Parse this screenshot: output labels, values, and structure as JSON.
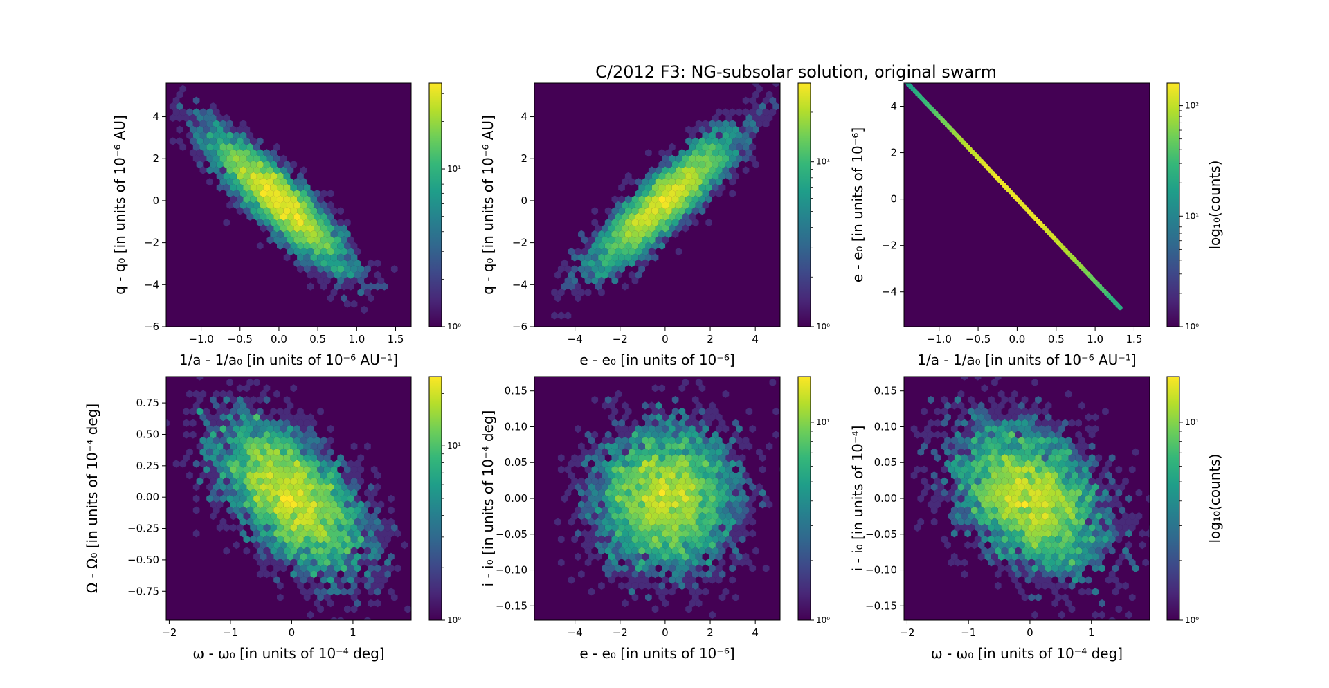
{
  "figure": {
    "title": "C/2012 F3: NG-subsolar solution, original swarm"
  },
  "colormap": {
    "name": "viridis",
    "stops": [
      "#440154",
      "#482878",
      "#3e4989",
      "#31688e",
      "#26828e",
      "#1f9e89",
      "#35b779",
      "#6ece58",
      "#b5de2b",
      "#fde725"
    ]
  },
  "chart_data": [
    {
      "type": "heatmap",
      "subtype": "hexbin",
      "xlabel": "1/a - 1/a₀ [in units of 10⁻⁶ AU⁻¹]",
      "ylabel": "q - q₀ [in units of 10⁻⁶ AU]",
      "xlim": [
        -1.45,
        1.7
      ],
      "ylim": [
        -6.0,
        5.6
      ],
      "xticks": [
        -1.0,
        -0.5,
        0.0,
        0.5,
        1.0,
        1.5
      ],
      "xtick_labels": [
        "−1.0",
        "−0.5",
        "0.0",
        "0.5",
        "1.0",
        "1.5"
      ],
      "yticks": [
        -6,
        -4,
        -2,
        0,
        2,
        4
      ],
      "ytick_labels": [
        "−6",
        "−4",
        "−2",
        "0",
        "2",
        "4"
      ],
      "distribution": {
        "mean": [
          0.0,
          0.0
        ],
        "std": [
          0.42,
          1.55
        ],
        "corr": -0.88
      },
      "colorbar": {
        "scale": "log",
        "range": [
          1,
          35
        ],
        "ticks": [
          1,
          10
        ],
        "tick_labels": [
          "10⁰",
          "10¹"
        ],
        "label": ""
      }
    },
    {
      "type": "heatmap",
      "subtype": "hexbin",
      "xlabel": "e - e₀ [in units of 10⁻⁶]",
      "ylabel": "q - q₀ [in units of 10⁻⁶ AU]",
      "xlim": [
        -5.8,
        5.1
      ],
      "ylim": [
        -6.0,
        5.6
      ],
      "xticks": [
        -4,
        -2,
        0,
        2,
        4
      ],
      "xtick_labels": [
        "−4",
        "−2",
        "0",
        "2",
        "4"
      ],
      "yticks": [
        -6,
        -4,
        -2,
        0,
        2,
        4
      ],
      "ytick_labels": [
        "−6",
        "−4",
        "−2",
        "0",
        "2",
        "4"
      ],
      "distribution": {
        "mean": [
          0.0,
          0.0
        ],
        "std": [
          1.5,
          1.55
        ],
        "corr": 0.88
      },
      "colorbar": {
        "scale": "log",
        "range": [
          1,
          30
        ],
        "ticks": [
          1,
          10
        ],
        "tick_labels": [
          "10⁰",
          "10¹"
        ],
        "label": ""
      }
    },
    {
      "type": "heatmap",
      "subtype": "hexbin",
      "xlabel": "1/a - 1/a₀ [in units of 10⁻⁶ AU⁻¹]",
      "ylabel": "e - e₀ [in units of 10⁻⁶]",
      "xlim": [
        -1.45,
        1.7
      ],
      "ylim": [
        -5.5,
        5.0
      ],
      "xticks": [
        -1.0,
        -0.5,
        0.0,
        0.5,
        1.0,
        1.5
      ],
      "xtick_labels": [
        "−1.0",
        "−0.5",
        "0.0",
        "0.5",
        "1.0",
        "1.5"
      ],
      "yticks": [
        -4,
        -2,
        0,
        2,
        4
      ],
      "ytick_labels": [
        "−4",
        "−2",
        "0",
        "2",
        "4"
      ],
      "line": {
        "slope": -3.55,
        "from_x": -1.45,
        "to_x": 1.32
      },
      "colorbar": {
        "scale": "log",
        "range": [
          1,
          160
        ],
        "ticks": [
          1,
          10,
          100
        ],
        "tick_labels": [
          "10⁰",
          "10¹",
          "10²"
        ],
        "label": "log₁₀(counts)"
      }
    },
    {
      "type": "heatmap",
      "subtype": "hexbin",
      "xlabel": "ω - ω₀ [in units of 10⁻⁴ deg]",
      "ylabel": "Ω - Ω₀ [in units of 10⁻⁴ deg]",
      "xlim": [
        -2.05,
        1.95
      ],
      "ylim": [
        -0.98,
        0.96
      ],
      "xticks": [
        -2,
        -1,
        0,
        1
      ],
      "xtick_labels": [
        "−2",
        "−1",
        "0",
        "1"
      ],
      "yticks": [
        -0.75,
        -0.5,
        -0.25,
        0.0,
        0.25,
        0.5,
        0.75
      ],
      "ytick_labels": [
        "−0.75",
        "−0.50",
        "−0.25",
        "0.00",
        "0.25",
        "0.50",
        "0.75"
      ],
      "distribution": {
        "mean": [
          0.0,
          0.0
        ],
        "std": [
          0.6,
          0.3
        ],
        "corr": -0.55
      },
      "colorbar": {
        "scale": "log",
        "range": [
          1,
          25
        ],
        "ticks": [
          1,
          10
        ],
        "tick_labels": [
          "10⁰",
          "10¹"
        ],
        "label": ""
      }
    },
    {
      "type": "heatmap",
      "subtype": "hexbin",
      "xlabel": "e - e₀ [in units of 10⁻⁶]",
      "ylabel": "i - i₀ [in units of 10⁻⁴ deg]",
      "xlim": [
        -5.8,
        5.1
      ],
      "ylim": [
        -0.17,
        0.17
      ],
      "xticks": [
        -4,
        -2,
        0,
        2,
        4
      ],
      "xtick_labels": [
        "−4",
        "−2",
        "0",
        "2",
        "4"
      ],
      "yticks": [
        -0.15,
        -0.1,
        -0.05,
        0.0,
        0.05,
        0.1,
        0.15
      ],
      "ytick_labels": [
        "−0.15",
        "−0.10",
        "−0.05",
        "0.00",
        "0.05",
        "0.10",
        "0.15"
      ],
      "distribution": {
        "mean": [
          0.0,
          0.0
        ],
        "std": [
          1.5,
          0.05
        ],
        "corr": 0.0
      },
      "colorbar": {
        "scale": "log",
        "range": [
          1,
          17
        ],
        "ticks": [
          1,
          10
        ],
        "tick_labels": [
          "10⁰",
          "10¹"
        ],
        "label": ""
      }
    },
    {
      "type": "heatmap",
      "subtype": "hexbin",
      "xlabel": "ω - ω₀ [in units of 10⁻⁴ deg]",
      "ylabel": "i - i₀ [in units of 10⁻⁴]",
      "xlim": [
        -2.05,
        1.95
      ],
      "ylim": [
        -0.17,
        0.17
      ],
      "xticks": [
        -2,
        -1,
        0,
        1
      ],
      "xtick_labels": [
        "−2",
        "−1",
        "0",
        "1"
      ],
      "yticks": [
        -0.15,
        -0.1,
        -0.05,
        0.0,
        0.05,
        0.1,
        0.15
      ],
      "ytick_labels": [
        "−0.15",
        "−0.10",
        "−0.05",
        "0.00",
        "0.05",
        "0.10",
        "0.15"
      ],
      "distribution": {
        "mean": [
          0.0,
          0.0
        ],
        "std": [
          0.6,
          0.05
        ],
        "corr": -0.35
      },
      "colorbar": {
        "scale": "log",
        "range": [
          1,
          17
        ],
        "ticks": [
          1,
          10
        ],
        "tick_labels": [
          "10⁰",
          "10¹"
        ],
        "label": "log₁₀(counts)"
      }
    }
  ]
}
